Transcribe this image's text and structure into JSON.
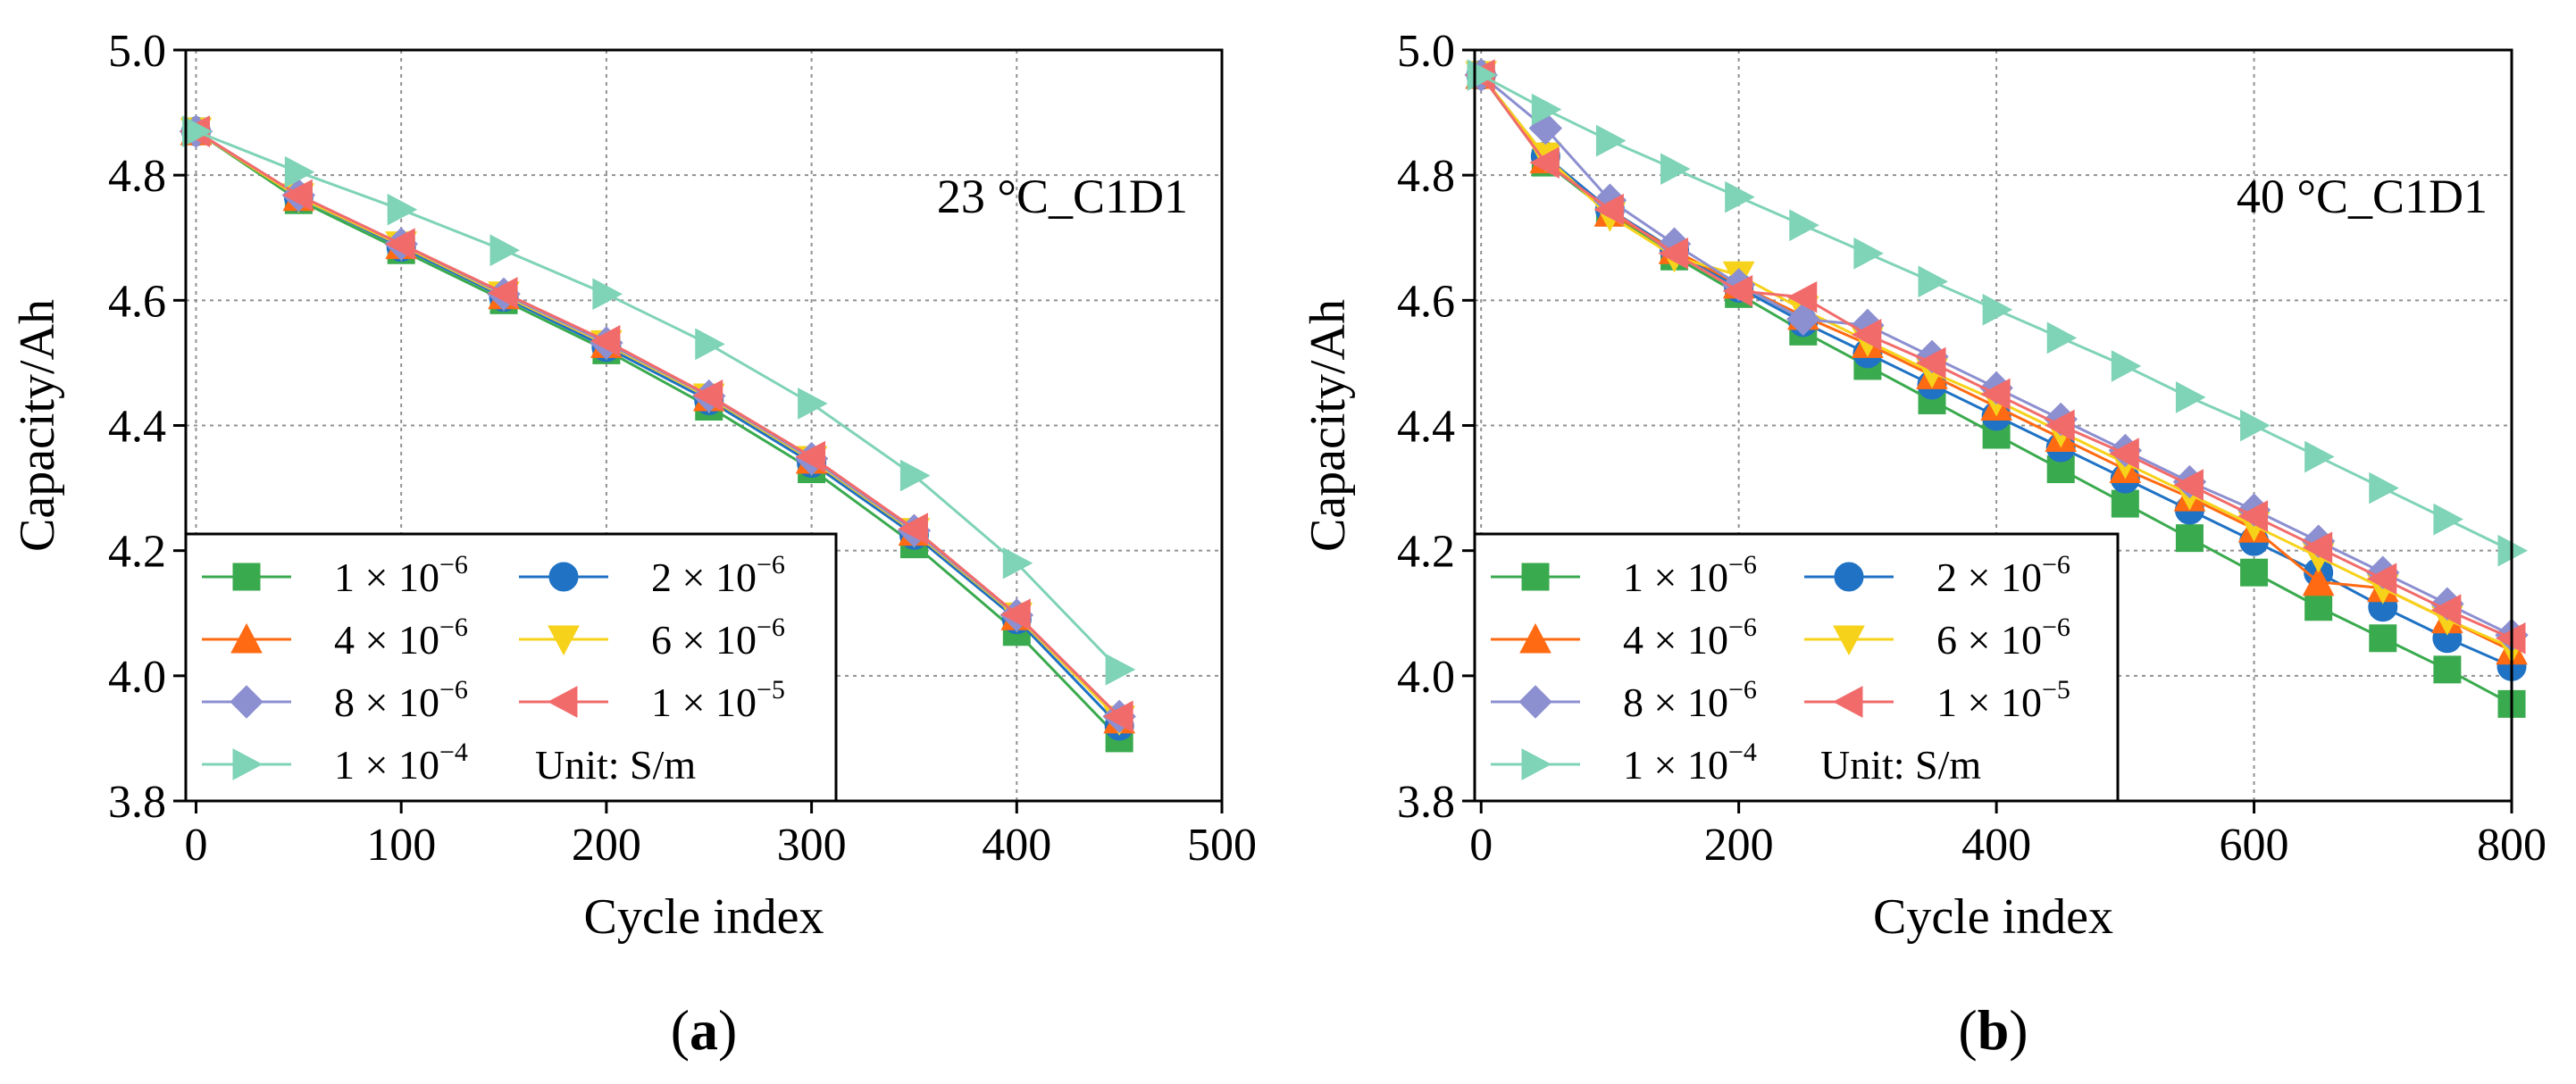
{
  "colors": {
    "s1e6": "#3aaa4e",
    "s2e6": "#1f72c4",
    "s4e6": "#ff6a13",
    "s6e6": "#f7d21a",
    "s8e6": "#8c8fd0",
    "s1e5": "#f26b6b",
    "s1e4": "#7fd3b6",
    "grid": "#909090"
  },
  "chart_data": [
    {
      "type": "line",
      "panel_label": {
        "open": "(",
        "letter": "a",
        "close": ")"
      },
      "annotation": "23 °C_C1D1",
      "xlabel": "Cycle index",
      "ylabel": "Capacity/Ah",
      "xlim": [
        -5,
        500
      ],
      "ylim": [
        3.8,
        5.0
      ],
      "xticks": [
        "0",
        "100",
        "200",
        "300",
        "400",
        "500"
      ],
      "xtick_values": [
        0,
        100,
        200,
        300,
        400,
        500
      ],
      "yticks": [
        "3.8",
        "4.0",
        "4.2",
        "4.4",
        "4.6",
        "4.8",
        "5.0"
      ],
      "ytick_values": [
        3.8,
        4.0,
        4.2,
        4.4,
        4.6,
        4.8,
        5.0
      ],
      "x": [
        0,
        50,
        100,
        150,
        200,
        250,
        300,
        350,
        400,
        450
      ],
      "legend_unit": "Unit: S/m",
      "series": [
        {
          "name": "1 × 10-6",
          "mant": "1 × 10",
          "exp": "−6",
          "color_key": "s1e6",
          "marker": "square",
          "values": [
            4.87,
            4.76,
            4.68,
            4.6,
            4.52,
            4.43,
            4.33,
            4.21,
            4.07,
            3.9
          ]
        },
        {
          "name": "2 × 10-6",
          "mant": "2 × 10",
          "exp": "−6",
          "color_key": "s2e6",
          "marker": "circle",
          "values": [
            4.87,
            4.765,
            4.685,
            4.605,
            4.525,
            4.44,
            4.34,
            4.225,
            4.09,
            3.92
          ]
        },
        {
          "name": "4 × 10-6",
          "mant": "4 × 10",
          "exp": "−6",
          "color_key": "s4e6",
          "marker": "triangle-up",
          "values": [
            4.87,
            4.765,
            4.688,
            4.608,
            4.53,
            4.445,
            4.345,
            4.23,
            4.095,
            3.93
          ]
        },
        {
          "name": "6 × 10-6",
          "mant": "6 × 10",
          "exp": "−6",
          "color_key": "s6e6",
          "marker": "triangle-down",
          "values": [
            4.87,
            4.765,
            4.688,
            4.608,
            4.53,
            4.445,
            4.345,
            4.23,
            4.095,
            3.93
          ]
        },
        {
          "name": "8 × 10-6",
          "mant": "8 × 10",
          "exp": "−6",
          "color_key": "s8e6",
          "marker": "diamond",
          "values": [
            4.87,
            4.768,
            4.69,
            4.61,
            4.532,
            4.447,
            4.347,
            4.232,
            4.097,
            3.935
          ]
        },
        {
          "name": "1 × 10-5",
          "mant": "1 × 10",
          "exp": "−5",
          "color_key": "s1e5",
          "marker": "triangle-left",
          "values": [
            4.87,
            4.768,
            4.69,
            4.612,
            4.535,
            4.448,
            4.35,
            4.235,
            4.098,
            3.935
          ]
        },
        {
          "name": "1 × 10-4",
          "mant": "1 × 10",
          "exp": "−4",
          "color_key": "s1e4",
          "marker": "triangle-right",
          "values": [
            4.87,
            4.805,
            4.745,
            4.68,
            4.61,
            4.53,
            4.435,
            4.32,
            4.18,
            4.01
          ]
        }
      ]
    },
    {
      "type": "line",
      "panel_label": {
        "open": "(",
        "letter": "b",
        "close": ")"
      },
      "annotation": "40 °C_C1D1",
      "xlabel": "Cycle index",
      "ylabel": "Capacity/Ah",
      "xlim": [
        -5,
        800
      ],
      "ylim": [
        3.8,
        5.0
      ],
      "xticks": [
        "0",
        "200",
        "400",
        "600",
        "800"
      ],
      "xtick_values": [
        0,
        200,
        400,
        600,
        800
      ],
      "yticks": [
        "3.8",
        "4.0",
        "4.2",
        "4.4",
        "4.6",
        "4.8",
        "5.0"
      ],
      "ytick_values": [
        3.8,
        4.0,
        4.2,
        4.4,
        4.6,
        4.8,
        5.0
      ],
      "x": [
        0,
        50,
        100,
        150,
        200,
        250,
        300,
        350,
        400,
        450,
        500,
        550,
        600,
        650,
        700,
        750,
        800
      ],
      "legend_unit": "Unit: S/m",
      "series": [
        {
          "name": "1 × 10-6",
          "mant": "1 × 10",
          "exp": "−6",
          "color_key": "s1e6",
          "marker": "square",
          "values": [
            4.96,
            4.82,
            4.74,
            4.67,
            4.61,
            4.55,
            4.495,
            4.44,
            4.385,
            4.33,
            4.275,
            4.22,
            4.165,
            4.11,
            4.06,
            4.01,
            3.955
          ]
        },
        {
          "name": "2 × 10-6",
          "mant": "2 × 10",
          "exp": "−6",
          "color_key": "s2e6",
          "marker": "circle",
          "values": [
            4.96,
            4.83,
            4.745,
            4.68,
            4.62,
            4.565,
            4.515,
            4.465,
            4.415,
            4.365,
            4.315,
            4.265,
            4.215,
            4.165,
            4.11,
            4.06,
            4.015
          ]
        },
        {
          "name": "4 × 10-6",
          "mant": "4 × 10",
          "exp": "−6",
          "color_key": "s4e6",
          "marker": "triangle-up",
          "values": [
            4.96,
            4.825,
            4.74,
            4.68,
            4.625,
            4.575,
            4.53,
            4.48,
            4.43,
            4.38,
            4.33,
            4.285,
            4.235,
            4.15,
            4.14,
            4.09,
            4.04
          ]
        },
        {
          "name": "6 × 10-6",
          "mant": "6 × 10",
          "exp": "−6",
          "color_key": "s6e6",
          "marker": "triangle-down",
          "values": [
            4.96,
            4.83,
            4.735,
            4.67,
            4.64,
            4.585,
            4.535,
            4.485,
            4.44,
            4.39,
            4.34,
            4.29,
            4.24,
            4.19,
            4.14,
            4.09,
            4.045
          ]
        },
        {
          "name": "8 × 10-6",
          "mant": "8 × 10",
          "exp": "−6",
          "color_key": "s8e6",
          "marker": "diamond",
          "values": [
            4.96,
            4.875,
            4.76,
            4.69,
            4.625,
            4.57,
            4.56,
            4.51,
            4.46,
            4.41,
            4.36,
            4.31,
            4.265,
            4.215,
            4.165,
            4.115,
            4.065
          ]
        },
        {
          "name": "1 × 10-5",
          "mant": "1 × 10",
          "exp": "−5",
          "color_key": "s1e5",
          "marker": "triangle-left",
          "values": [
            4.96,
            4.82,
            4.745,
            4.675,
            4.615,
            4.605,
            4.545,
            4.5,
            4.45,
            4.4,
            4.355,
            4.305,
            4.255,
            4.205,
            4.155,
            4.105,
            4.06
          ]
        },
        {
          "name": "1 × 10-4",
          "mant": "1 × 10",
          "exp": "−4",
          "color_key": "s1e4",
          "marker": "triangle-right",
          "values": [
            4.96,
            4.905,
            4.855,
            4.81,
            4.765,
            4.72,
            4.675,
            4.63,
            4.585,
            4.54,
            4.495,
            4.445,
            4.4,
            4.35,
            4.3,
            4.25,
            4.2
          ]
        }
      ]
    }
  ]
}
